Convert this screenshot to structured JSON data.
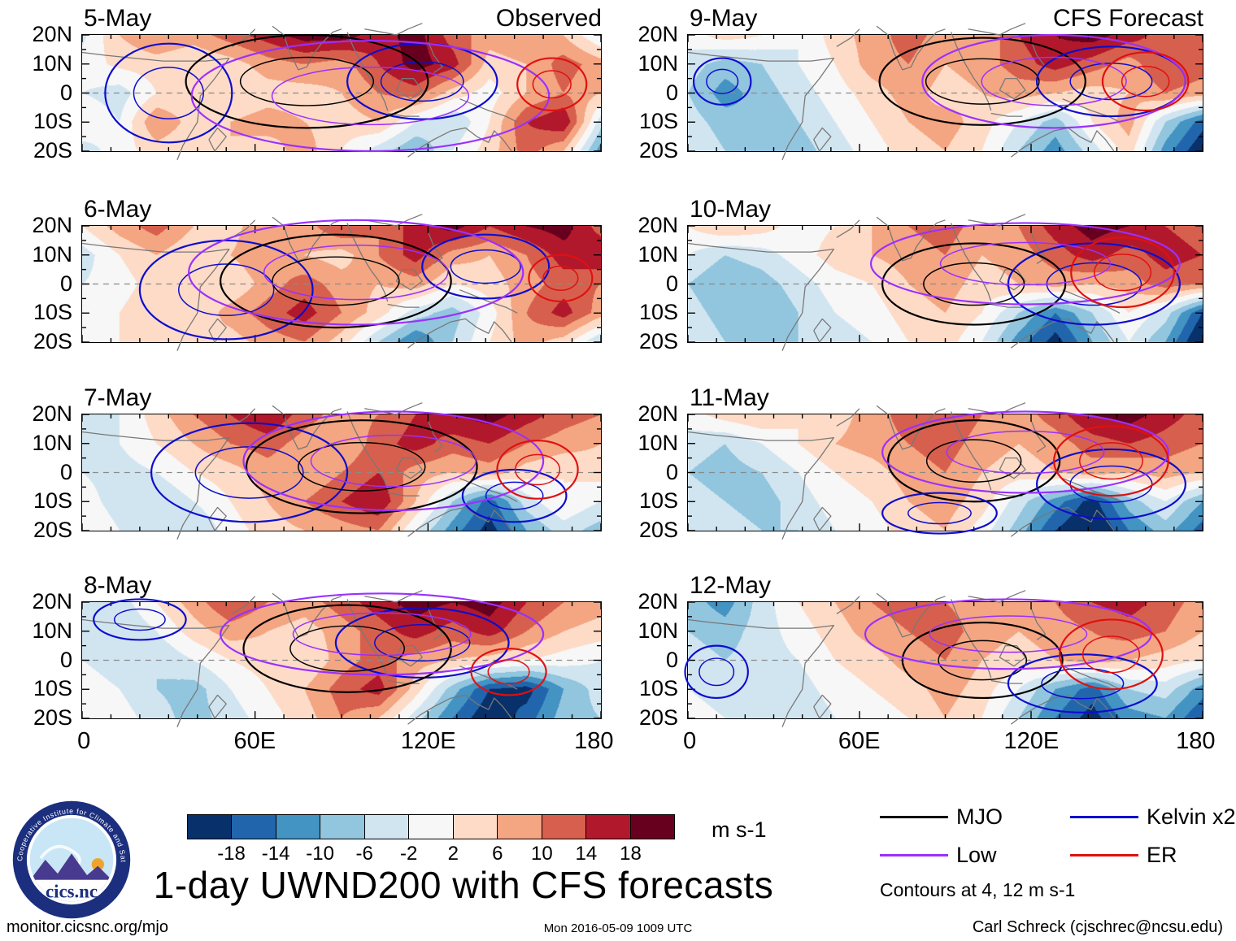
{
  "title": "1-day UWND200 with CFS forecasts",
  "columns": {
    "observed_label": "Observed",
    "forecast_label": "CFS Forecast"
  },
  "axis": {
    "y_tick_labels": [
      "20N",
      "10N",
      "0",
      "10S",
      "20S"
    ],
    "x_tick_labels": [
      "0",
      "60E",
      "120E",
      "180"
    ]
  },
  "colorbar": {
    "tick_labels": [
      "-18",
      "-14",
      "-10",
      "-6",
      "-2",
      "2",
      "6",
      "10",
      "14",
      "18"
    ],
    "unit": "m s-1"
  },
  "legend": {
    "entries": [
      {
        "label": "MJO",
        "color": "#000000"
      },
      {
        "label": "Low",
        "color": "#9b30ff"
      },
      {
        "label": "Kelvin x2",
        "color": "#0d0dcf"
      },
      {
        "label": "ER",
        "color": "#e01010"
      }
    ],
    "note": "Contours at 4, 12 m s-1"
  },
  "footer": {
    "left": "monitor.cicsnc.org/mjo",
    "center": "Mon 2016-05-09 1009 UTC",
    "right": "Carl Schreck (cjschrec@ncsu.edu)"
  },
  "logo": {
    "ring_text": "Cooperative Institute for Climate and Satellites",
    "name": "cics.nc"
  },
  "chart_data": {
    "type": "heatmap",
    "variable": "UWND200 anomaly",
    "unit": "m s-1",
    "lon_range": [
      0,
      180
    ],
    "lat_range": [
      -20,
      20
    ],
    "grid_note": "rows span 20N to 20S top-to-bottom; cols span 0E to 180E evenly",
    "thresholds": [
      -18,
      -14,
      -10,
      -6,
      -2,
      2,
      6,
      10,
      14,
      18
    ],
    "colors": [
      "#08306b",
      "#2166ac",
      "#4393c3",
      "#92c5de",
      "#d1e5f0",
      "#f7f7f7",
      "#fddbc7",
      "#f4a582",
      "#d6604d",
      "#b2182b",
      "#67001f"
    ],
    "contour_levels": [
      4,
      12
    ],
    "panels": [
      {
        "date_label": "5-May",
        "column": "Observed",
        "grid": [
          [
            -3,
            6,
            10,
            8,
            12,
            16,
            20,
            20,
            16,
            20,
            12,
            8,
            10,
            6,
            -2
          ],
          [
            0,
            3,
            4,
            2,
            4,
            8,
            10,
            8,
            14,
            20,
            16,
            4,
            6,
            12,
            8
          ],
          [
            -2,
            -4,
            2,
            3,
            2,
            4,
            4,
            6,
            10,
            12,
            4,
            0,
            6,
            10,
            6
          ],
          [
            2,
            -2,
            10,
            4,
            6,
            8,
            6,
            4,
            6,
            -2,
            -6,
            2,
            14,
            18,
            -4
          ],
          [
            -4,
            0,
            4,
            2,
            6,
            4,
            8,
            2,
            -4,
            -10,
            -2,
            4,
            12,
            6,
            -12
          ]
        ],
        "overlays": [
          {
            "type": "kelvin",
            "lon": 30,
            "lat": 0,
            "rx": 22,
            "ry": 17
          },
          {
            "type": "kelvin",
            "lon": 118,
            "lat": 4,
            "rx": 26,
            "ry": 13
          },
          {
            "type": "mjo",
            "lon": 78,
            "lat": 4,
            "rx": 42,
            "ry": 16
          },
          {
            "type": "low",
            "lon": 100,
            "lat": -1,
            "rx": 62,
            "ry": 19
          },
          {
            "type": "er",
            "lon": 163,
            "lat": 3,
            "rx": 12,
            "ry": 9
          }
        ]
      },
      {
        "date_label": "6-May",
        "column": "Observed",
        "grid": [
          [
            2,
            8,
            12,
            6,
            4,
            10,
            8,
            14,
            10,
            16,
            20,
            14,
            18,
            20,
            12
          ],
          [
            -4,
            2,
            6,
            2,
            6,
            10,
            6,
            4,
            10,
            16,
            8,
            6,
            10,
            16,
            18
          ],
          [
            -2,
            0,
            4,
            4,
            2,
            8,
            12,
            8,
            6,
            8,
            2,
            4,
            8,
            12,
            10
          ],
          [
            0,
            2,
            6,
            2,
            8,
            12,
            16,
            10,
            4,
            -4,
            -8,
            0,
            10,
            16,
            8
          ],
          [
            -2,
            2,
            4,
            6,
            4,
            8,
            10,
            4,
            -6,
            -14,
            -6,
            2,
            8,
            4,
            -6
          ]
        ],
        "overlays": [
          {
            "type": "kelvin",
            "lon": 50,
            "lat": -2,
            "rx": 30,
            "ry": 17
          },
          {
            "type": "kelvin",
            "lon": 140,
            "lat": 6,
            "rx": 22,
            "ry": 11
          },
          {
            "type": "mjo",
            "lon": 88,
            "lat": 1,
            "rx": 40,
            "ry": 16
          },
          {
            "type": "low",
            "lon": 95,
            "lat": 4,
            "rx": 58,
            "ry": 18
          },
          {
            "type": "er",
            "lon": 166,
            "lat": 2,
            "rx": 11,
            "ry": 8
          }
        ]
      },
      {
        "date_label": "7-May",
        "column": "Observed",
        "grid": [
          [
            -4,
            -2,
            4,
            10,
            14,
            18,
            12,
            8,
            10,
            14,
            18,
            20,
            16,
            12,
            10
          ],
          [
            -6,
            -2,
            2,
            6,
            10,
            12,
            8,
            6,
            12,
            16,
            12,
            14,
            10,
            8,
            6
          ],
          [
            -2,
            -4,
            -2,
            2,
            4,
            8,
            6,
            10,
            14,
            8,
            6,
            8,
            4,
            2,
            4
          ],
          [
            0,
            -4,
            -6,
            -2,
            2,
            6,
            10,
            14,
            18,
            6,
            -6,
            -16,
            -4,
            2,
            -2
          ],
          [
            2,
            -2,
            -4,
            -6,
            0,
            4,
            6,
            8,
            10,
            -2,
            -12,
            -20,
            -10,
            -4,
            -8
          ]
        ],
        "overlays": [
          {
            "type": "kelvin",
            "lon": 58,
            "lat": 0,
            "rx": 34,
            "ry": 17
          },
          {
            "type": "kelvin",
            "lon": 150,
            "lat": -8,
            "rx": 18,
            "ry": 9
          },
          {
            "type": "mjo",
            "lon": 97,
            "lat": 2,
            "rx": 40,
            "ry": 16
          },
          {
            "type": "low",
            "lon": 108,
            "lat": 4,
            "rx": 52,
            "ry": 17
          },
          {
            "type": "er",
            "lon": 158,
            "lat": 1,
            "rx": 14,
            "ry": 10
          }
        ]
      },
      {
        "date_label": "8-May",
        "column": "Observed",
        "grid": [
          [
            -6,
            -4,
            2,
            8,
            14,
            10,
            8,
            12,
            16,
            20,
            18,
            20,
            14,
            10,
            8
          ],
          [
            -4,
            -6,
            -2,
            4,
            8,
            6,
            4,
            8,
            12,
            16,
            12,
            16,
            10,
            6,
            4
          ],
          [
            -2,
            -4,
            -6,
            -2,
            2,
            4,
            2,
            8,
            12,
            8,
            6,
            4,
            2,
            0,
            -2
          ],
          [
            0,
            -2,
            -6,
            -8,
            -2,
            2,
            6,
            12,
            16,
            4,
            -8,
            -18,
            -20,
            -10,
            -4
          ],
          [
            2,
            0,
            -4,
            -8,
            -4,
            0,
            4,
            10,
            6,
            -4,
            -14,
            -22,
            -16,
            -8,
            -6
          ]
        ],
        "overlays": [
          {
            "type": "kelvin",
            "lon": 20,
            "lat": 14,
            "rx": 16,
            "ry": 7
          },
          {
            "type": "kelvin",
            "lon": 118,
            "lat": 6,
            "rx": 30,
            "ry": 12
          },
          {
            "type": "mjo",
            "lon": 92,
            "lat": 4,
            "rx": 36,
            "ry": 15
          },
          {
            "type": "low",
            "lon": 104,
            "lat": 9,
            "rx": 56,
            "ry": 14
          },
          {
            "type": "er",
            "lon": 148,
            "lat": -4,
            "rx": 13,
            "ry": 8
          }
        ]
      },
      {
        "date_label": "9-May",
        "column": "CFS Forecast",
        "grid": [
          [
            0,
            4,
            2,
            -2,
            4,
            8,
            12,
            8,
            6,
            14,
            18,
            20,
            16,
            12,
            10
          ],
          [
            -4,
            -8,
            -6,
            -2,
            2,
            8,
            10,
            6,
            8,
            12,
            16,
            12,
            8,
            14,
            12
          ],
          [
            -6,
            -12,
            -8,
            -4,
            0,
            4,
            8,
            4,
            6,
            8,
            6,
            4,
            6,
            10,
            8
          ],
          [
            -4,
            -8,
            -10,
            -6,
            -2,
            2,
            6,
            8,
            4,
            -2,
            -8,
            2,
            8,
            -6,
            -16
          ],
          [
            -2,
            -6,
            -8,
            -8,
            -4,
            0,
            4,
            6,
            2,
            -6,
            -12,
            -4,
            4,
            -12,
            -22
          ]
        ],
        "overlays": [
          {
            "type": "mjo",
            "lon": 103,
            "lat": 4,
            "rx": 36,
            "ry": 15
          },
          {
            "type": "kelvin",
            "lon": 148,
            "lat": 4,
            "rx": 26,
            "ry": 12
          },
          {
            "type": "kelvin",
            "lon": 12,
            "lat": 4,
            "rx": 10,
            "ry": 8
          },
          {
            "type": "low",
            "lon": 128,
            "lat": 4,
            "rx": 46,
            "ry": 16
          },
          {
            "type": "er",
            "lon": 160,
            "lat": 4,
            "rx": 15,
            "ry": 10
          }
        ]
      },
      {
        "date_label": "10-May",
        "column": "CFS Forecast",
        "grid": [
          [
            2,
            6,
            4,
            0,
            2,
            6,
            10,
            12,
            8,
            10,
            16,
            20,
            18,
            14,
            12
          ],
          [
            -2,
            -6,
            -4,
            0,
            4,
            6,
            8,
            10,
            6,
            8,
            12,
            16,
            12,
            16,
            14
          ],
          [
            -6,
            -10,
            -8,
            -4,
            0,
            2,
            6,
            8,
            4,
            6,
            8,
            6,
            8,
            12,
            10
          ],
          [
            -4,
            -8,
            -10,
            -6,
            -2,
            0,
            4,
            6,
            2,
            -6,
            -14,
            -6,
            2,
            -4,
            -18
          ],
          [
            -2,
            -6,
            -8,
            -6,
            -4,
            -2,
            2,
            4,
            -2,
            -12,
            -20,
            -10,
            -2,
            -10,
            -24
          ]
        ],
        "overlays": [
          {
            "type": "mjo",
            "lon": 100,
            "lat": 0,
            "rx": 32,
            "ry": 14
          },
          {
            "type": "kelvin",
            "lon": 142,
            "lat": 0,
            "rx": 30,
            "ry": 14
          },
          {
            "type": "low",
            "lon": 118,
            "lat": 7,
            "rx": 54,
            "ry": 14
          },
          {
            "type": "er",
            "lon": 152,
            "lat": 4,
            "rx": 18,
            "ry": 12
          }
        ]
      },
      {
        "date_label": "11-May",
        "column": "CFS Forecast",
        "grid": [
          [
            0,
            4,
            6,
            2,
            4,
            8,
            12,
            14,
            10,
            8,
            12,
            18,
            20,
            16,
            12
          ],
          [
            -4,
            -6,
            -2,
            2,
            6,
            8,
            10,
            12,
            8,
            6,
            8,
            12,
            14,
            12,
            10
          ],
          [
            -6,
            -8,
            -6,
            -2,
            2,
            4,
            8,
            10,
            6,
            4,
            6,
            8,
            6,
            8,
            6
          ],
          [
            -4,
            -6,
            -8,
            -4,
            0,
            2,
            6,
            8,
            4,
            -4,
            -12,
            -20,
            -8,
            -2,
            -10
          ],
          [
            -2,
            -4,
            -6,
            -6,
            -2,
            0,
            4,
            6,
            0,
            -8,
            -18,
            -24,
            -14,
            -8,
            -16
          ]
        ],
        "overlays": [
          {
            "type": "mjo",
            "lon": 100,
            "lat": 4,
            "rx": 30,
            "ry": 14
          },
          {
            "type": "kelvin",
            "lon": 148,
            "lat": -4,
            "rx": 26,
            "ry": 12
          },
          {
            "type": "kelvin",
            "lon": 88,
            "lat": -14,
            "rx": 20,
            "ry": 7
          },
          {
            "type": "low",
            "lon": 118,
            "lat": 7,
            "rx": 50,
            "ry": 14
          },
          {
            "type": "er",
            "lon": 148,
            "lat": 4,
            "rx": 20,
            "ry": 12
          }
        ]
      },
      {
        "date_label": "12-May",
        "column": "CFS Forecast",
        "grid": [
          [
            -8,
            -12,
            -4,
            2,
            6,
            10,
            12,
            10,
            8,
            6,
            10,
            14,
            16,
            12,
            8
          ],
          [
            -6,
            -8,
            -4,
            0,
            4,
            8,
            10,
            12,
            8,
            6,
            8,
            10,
            12,
            10,
            6
          ],
          [
            -4,
            -6,
            -4,
            -2,
            2,
            4,
            8,
            10,
            6,
            4,
            6,
            8,
            6,
            4,
            2
          ],
          [
            -2,
            -4,
            -6,
            -4,
            0,
            2,
            4,
            8,
            4,
            -2,
            -10,
            -16,
            -6,
            -4,
            -12
          ],
          [
            0,
            -2,
            -4,
            -6,
            -2,
            0,
            2,
            6,
            2,
            -6,
            -14,
            -20,
            -12,
            -10,
            -18
          ]
        ],
        "overlays": [
          {
            "type": "mjo",
            "lon": 103,
            "lat": 0,
            "rx": 28,
            "ry": 13
          },
          {
            "type": "kelvin",
            "lon": 10,
            "lat": -4,
            "rx": 11,
            "ry": 9
          },
          {
            "type": "kelvin",
            "lon": 138,
            "lat": -8,
            "rx": 26,
            "ry": 10
          },
          {
            "type": "low",
            "lon": 112,
            "lat": 9,
            "rx": 50,
            "ry": 12
          },
          {
            "type": "er",
            "lon": 148,
            "lat": 2,
            "rx": 18,
            "ry": 12
          }
        ]
      }
    ]
  }
}
